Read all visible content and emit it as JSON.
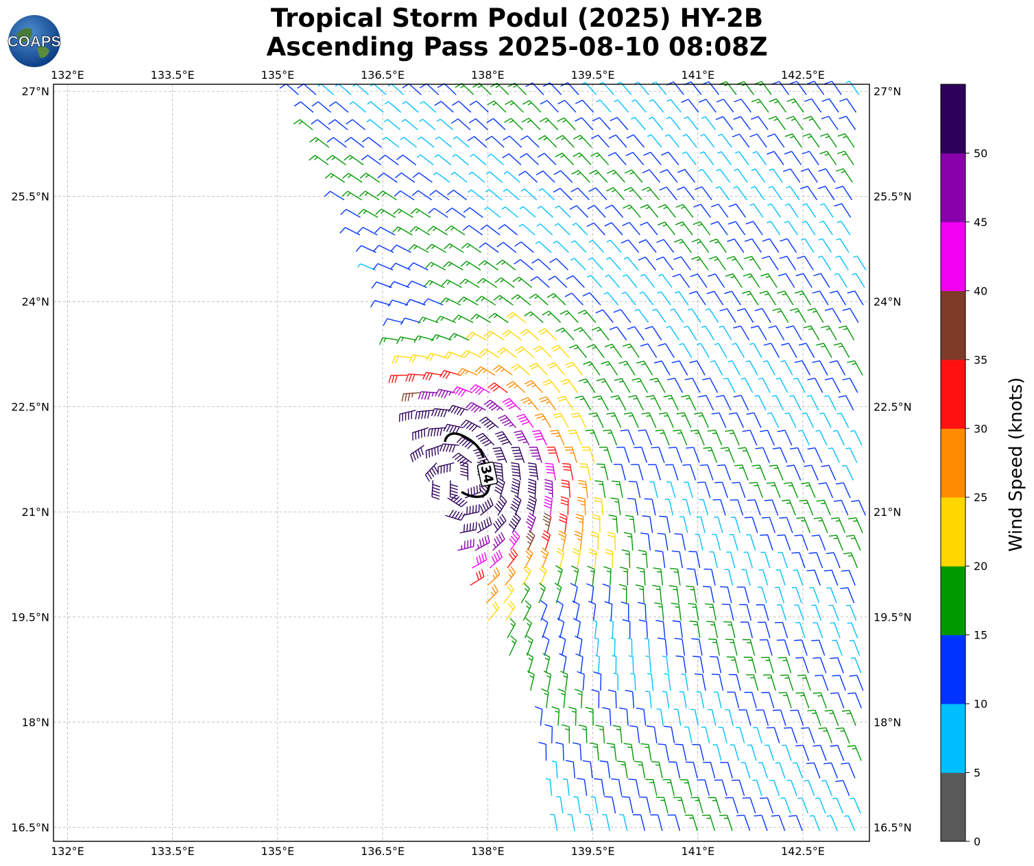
{
  "title_line1": "Tropical Storm Podul (2025) HY-2B",
  "title_line2": "Ascending Pass 2025-08-10 08:08Z",
  "logo_text": "COAPS",
  "lon_ticks": [
    "132°E",
    "133.5°E",
    "135°E",
    "136.5°E",
    "138°E",
    "139.5°E",
    "141°E",
    "142.5°E"
  ],
  "lat_ticks": [
    "27°N",
    "25.5°N",
    "24°N",
    "22.5°N",
    "21°N",
    "19.5°N",
    "18°N",
    "16.5°N"
  ],
  "map_extent": {
    "lon_min": 131.8,
    "lon_max": 143.45,
    "lat_min": 16.3,
    "lat_max": 27.1
  },
  "contour_label": "34",
  "colorbar": {
    "label": "Wind Speed (knots)",
    "ticks": [
      "0",
      "5",
      "10",
      "15",
      "20",
      "25",
      "30",
      "35",
      "40",
      "45",
      "50"
    ],
    "colors": [
      "#595959",
      "#00bfff",
      "#0033ff",
      "#009900",
      "#ffd700",
      "#ff8c00",
      "#ff1111",
      "#7f3a28",
      "#f200f2",
      "#8800aa",
      "#2d005a"
    ],
    "levels": [
      0,
      5,
      10,
      15,
      20,
      25,
      30,
      35,
      40,
      45,
      50,
      55
    ]
  },
  "chart_data": {
    "type": "map",
    "storm_center_approx": {
      "lon": 137.6,
      "lat": 21.45
    },
    "swath_west_edge": [
      [
        135.3,
        26.9
      ],
      [
        136.6,
        24.0
      ],
      [
        137.2,
        21.5
      ],
      [
        137.8,
        19.8
      ],
      [
        138.7,
        18.3
      ],
      [
        139.0,
        16.4
      ]
    ],
    "max_wind_kt_approx": 45
  }
}
